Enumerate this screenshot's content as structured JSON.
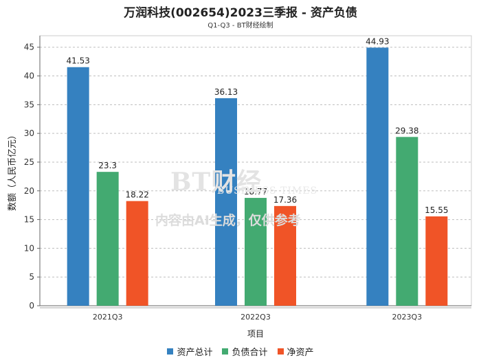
{
  "chart_data": {
    "type": "bar",
    "title": "万润科技(002654)2023三季报 - 资产负债",
    "subtitle": "Q1-Q3 - BT财经绘制",
    "xlabel": "项目",
    "ylabel": "数额（人民币亿元）",
    "ylim": [
      0,
      47
    ],
    "yticks": [
      0,
      5,
      10,
      15,
      20,
      25,
      30,
      35,
      40,
      45
    ],
    "categories": [
      "2021Q3",
      "2022Q3",
      "2023Q3"
    ],
    "series": [
      {
        "name": "资产总计",
        "color": "#3581c0",
        "values": [
          41.53,
          36.13,
          44.93
        ],
        "labels": [
          "41.53",
          "36.13",
          "44.93"
        ]
      },
      {
        "name": "负债合计",
        "color": "#43aa71",
        "values": [
          23.3,
          18.77,
          29.38
        ],
        "labels": [
          "23.3",
          "18.77",
          "29.38"
        ]
      },
      {
        "name": "净资产",
        "color": "#f05427",
        "values": [
          18.22,
          17.36,
          15.55
        ],
        "labels": [
          "18.22",
          "17.36",
          "15.55"
        ]
      }
    ],
    "grid": true,
    "legend_position": "bottom"
  },
  "watermark": {
    "logo": "BT财经",
    "logo_sub": "BUSINESS TIMES",
    "note": "内容由AI生成，仅供参考"
  }
}
